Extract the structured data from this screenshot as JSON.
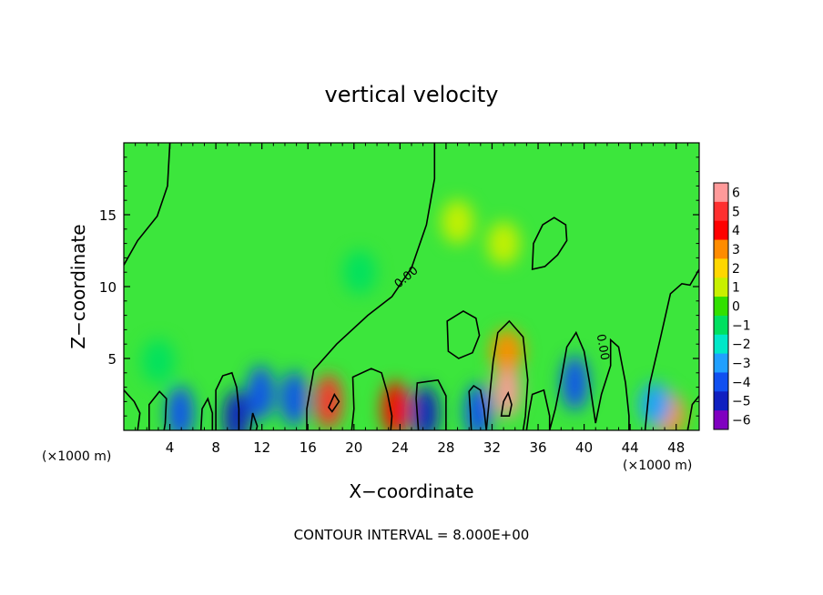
{
  "chart_data": {
    "type": "heatmap",
    "title": "vertical velocity",
    "xlabel": "X−coordinate",
    "ylabel": "Z−coordinate",
    "x_unit_label": "(×1000 m)",
    "y_unit_label": "(×1000 m)",
    "footer": "CONTOUR INTERVAL = 8.000E+00",
    "xlim": [
      0,
      50
    ],
    "ylim": [
      0,
      20
    ],
    "x_ticks": [
      4,
      8,
      12,
      16,
      20,
      24,
      28,
      32,
      36,
      40,
      44,
      48
    ],
    "x_tick_labels": [
      "4",
      "8",
      "12",
      "16",
      "20",
      "24",
      "28",
      "32",
      "36",
      "40",
      "44",
      "48"
    ],
    "y_ticks": [
      5,
      10,
      15
    ],
    "y_tick_labels": [
      "5",
      "10",
      "15"
    ],
    "colorbar": {
      "levels": [
        6,
        5,
        4,
        3,
        2,
        1,
        0,
        -1,
        -2,
        -3,
        -4,
        -5,
        -6
      ],
      "labels": [
        "6",
        "5",
        "4",
        "3",
        "2",
        "1",
        "0",
        "−1",
        "−2",
        "−3",
        "−4",
        "−5",
        "−6"
      ],
      "colors": [
        "#ff9a9a",
        "#ff3030",
        "#ff0000",
        "#ff8c00",
        "#ffd700",
        "#c8f000",
        "#32e000",
        "#00e060",
        "#00e8c8",
        "#20a0ff",
        "#1050f0",
        "#1020c0",
        "#8000c0"
      ]
    },
    "background_value_color": "#3ce63c",
    "features": [
      {
        "x": 33.3,
        "z": 2.8,
        "value": 6
      },
      {
        "x": 33.3,
        "z": 5.5,
        "value": 3
      },
      {
        "x": 17.8,
        "z": 2.0,
        "value": 5
      },
      {
        "x": 23.6,
        "z": 1.5,
        "value": 4
      },
      {
        "x": 47.4,
        "z": 1.1,
        "value": 3
      },
      {
        "x": 11.9,
        "z": 2.6,
        "value": -4
      },
      {
        "x": 14.8,
        "z": 2.2,
        "value": -4
      },
      {
        "x": 26.2,
        "z": 1.2,
        "value": -5
      },
      {
        "x": 39.2,
        "z": 3.3,
        "value": -4
      },
      {
        "x": 9.8,
        "z": 0.9,
        "value": -5
      },
      {
        "x": 30.8,
        "z": 1.3,
        "value": -4
      },
      {
        "x": 46.2,
        "z": 1.8,
        "value": -3
      },
      {
        "x": 4.9,
        "z": 1.2,
        "value": -4
      },
      {
        "x": 3.0,
        "z": 4.8,
        "value": -1
      },
      {
        "x": 20.5,
        "z": 11.0,
        "value": -1
      },
      {
        "x": 33.0,
        "z": 13.0,
        "value": 1
      },
      {
        "x": 29.0,
        "z": 14.5,
        "value": 1
      }
    ],
    "contour_labels": [
      {
        "text": "0.00",
        "x": 24.5,
        "z": 10.7
      },
      {
        "text": "0.00",
        "x": 41.7,
        "z": 5.8
      }
    ],
    "contours": [
      [
        [
          0,
          11.5
        ],
        [
          1.2,
          13.2
        ],
        [
          2.9,
          14.9
        ],
        [
          3.8,
          17.0
        ],
        [
          4.0,
          20
        ]
      ],
      [
        [
          27.0,
          20
        ],
        [
          27.0,
          17.5
        ],
        [
          26.3,
          14.3
        ],
        [
          25.0,
          11.3
        ],
        [
          23.3,
          9.3
        ],
        [
          21.2,
          8.0
        ],
        [
          18.5,
          6.0
        ],
        [
          16.5,
          4.2
        ],
        [
          15.9,
          1.5
        ],
        [
          15.9,
          0
        ]
      ],
      [
        [
          19.8,
          0
        ],
        [
          20.0,
          1.5
        ],
        [
          19.9,
          3.7
        ],
        [
          21.5,
          4.3
        ],
        [
          22.4,
          4.0
        ],
        [
          22.9,
          2.6
        ],
        [
          23.3,
          1.0
        ],
        [
          23.2,
          0
        ]
      ],
      [
        [
          25.6,
          0
        ],
        [
          25.4,
          2.2
        ],
        [
          25.5,
          3.3
        ],
        [
          27.3,
          3.5
        ],
        [
          28.0,
          2.4
        ],
        [
          28.0,
          0
        ]
      ],
      [
        [
          30.2,
          0
        ],
        [
          30.1,
          1.5
        ],
        [
          30.0,
          2.7
        ],
        [
          30.4,
          3.1
        ],
        [
          31.0,
          2.8
        ],
        [
          31.3,
          1.5
        ],
        [
          31.5,
          0
        ]
      ],
      [
        [
          31.5,
          0
        ],
        [
          31.8,
          2.5
        ],
        [
          32.1,
          4.8
        ],
        [
          32.5,
          6.8
        ],
        [
          33.5,
          7.6
        ],
        [
          34.7,
          6.5
        ],
        [
          35.1,
          3.5
        ],
        [
          34.9,
          1.0
        ],
        [
          34.7,
          0
        ]
      ],
      [
        [
          35.0,
          0
        ],
        [
          35.2,
          1.2
        ],
        [
          35.5,
          2.5
        ],
        [
          36.5,
          2.8
        ],
        [
          37.0,
          1.0
        ],
        [
          37.0,
          0
        ]
      ],
      [
        [
          37.0,
          0
        ],
        [
          37.5,
          1.5
        ],
        [
          38.0,
          3.5
        ],
        [
          38.5,
          5.8
        ],
        [
          39.3,
          6.8
        ],
        [
          40.0,
          5.5
        ],
        [
          40.5,
          3.2
        ],
        [
          41.0,
          0.5
        ]
      ],
      [
        [
          41.0,
          0.5
        ],
        [
          41.5,
          2.5
        ],
        [
          42.3,
          4.5
        ],
        [
          42.3,
          6.3
        ],
        [
          43.0,
          5.8
        ],
        [
          43.6,
          3.3
        ],
        [
          43.9,
          1.0
        ],
        [
          43.9,
          0
        ]
      ],
      [
        [
          45.3,
          0
        ],
        [
          45.7,
          3.2
        ],
        [
          46.6,
          6.3
        ],
        [
          47.5,
          9.5
        ],
        [
          48.5,
          10.2
        ],
        [
          49.2,
          10.1
        ],
        [
          50,
          11.2
        ]
      ],
      [
        [
          6.7,
          0
        ],
        [
          6.8,
          1.5
        ],
        [
          7.3,
          2.2
        ],
        [
          7.7,
          1.2
        ],
        [
          7.7,
          0
        ]
      ],
      [
        [
          8.0,
          0
        ],
        [
          8.0,
          1.7
        ],
        [
          8.0,
          2.8
        ],
        [
          8.6,
          3.8
        ],
        [
          9.4,
          4.0
        ],
        [
          9.8,
          3.0
        ],
        [
          10.0,
          1.5
        ],
        [
          10.0,
          0
        ]
      ],
      [
        [
          0,
          2.8
        ],
        [
          0.9,
          2.0
        ],
        [
          1.4,
          1.2
        ],
        [
          1.2,
          0
        ]
      ],
      [
        [
          2.2,
          0
        ],
        [
          2.2,
          1.8
        ],
        [
          3.1,
          2.7
        ],
        [
          3.7,
          2.2
        ],
        [
          3.6,
          0.5
        ],
        [
          3.5,
          0
        ]
      ],
      [
        [
          49.0,
          0
        ],
        [
          49.4,
          1.8
        ],
        [
          50,
          2.4
        ]
      ],
      [
        [
          11.0,
          0
        ],
        [
          11.2,
          1.2
        ],
        [
          11.6,
          0.3
        ],
        [
          11.5,
          0
        ]
      ]
    ],
    "closed_contours": [
      [
        [
          35.5,
          11.2
        ],
        [
          35.6,
          13.0
        ],
        [
          36.4,
          14.3
        ],
        [
          37.4,
          14.8
        ],
        [
          38.4,
          14.3
        ],
        [
          38.5,
          13.2
        ],
        [
          37.7,
          12.2
        ],
        [
          36.6,
          11.4
        ]
      ],
      [
        [
          28.2,
          5.5
        ],
        [
          28.1,
          7.6
        ],
        [
          29.5,
          8.3
        ],
        [
          30.6,
          7.8
        ],
        [
          30.9,
          6.6
        ],
        [
          30.3,
          5.4
        ],
        [
          29.1,
          5.0
        ]
      ],
      [
        [
          32.8,
          1.0
        ],
        [
          33.0,
          2.0
        ],
        [
          33.4,
          2.6
        ],
        [
          33.7,
          1.8
        ],
        [
          33.5,
          1.0
        ]
      ],
      [
        [
          17.8,
          1.6
        ],
        [
          18.3,
          2.5
        ],
        [
          18.7,
          2.0
        ],
        [
          18.1,
          1.3
        ]
      ]
    ]
  }
}
